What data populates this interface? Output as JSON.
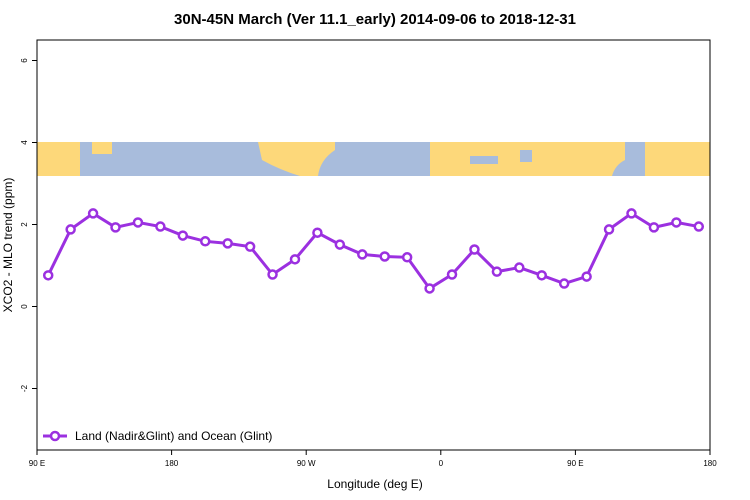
{
  "chart_data": {
    "type": "line",
    "title": "30N-45N March (Ver 11.1_early)   2014-09-06 to 2018-12-31",
    "x_label": "Longitude (deg E)",
    "y_label": "XCO2 - MLO trend (ppm)",
    "x": [
      97.5,
      112.5,
      127.5,
      142.5,
      157.5,
      172.5,
      187.5,
      202.5,
      217.5,
      232.5,
      247.5,
      262.5,
      277.5,
      292.5,
      307.5,
      322.5,
      337.5,
      352.5,
      367.5,
      382.5,
      397.5,
      412.5,
      427.5,
      442.5,
      457.5,
      472.5,
      487.5,
      502.5,
      517.5,
      532.5
    ],
    "series": [
      {
        "name": "Land (Nadir&Glint) and Ocean (Glint)",
        "color": "#9b30e0",
        "values": [
          0.76,
          1.88,
          2.27,
          1.93,
          2.05,
          1.95,
          1.73,
          1.59,
          1.54,
          1.46,
          0.78,
          1.15,
          1.8,
          1.51,
          1.27,
          1.22,
          1.2,
          0.44,
          0.78,
          1.39,
          0.85,
          0.95,
          0.76,
          0.56,
          0.73,
          1.88,
          2.27,
          1.93,
          2.05,
          1.95
        ]
      }
    ],
    "xlim": [
      90,
      540
    ],
    "xticks": [
      {
        "value": 90,
        "label": "90 E"
      },
      180,
      {
        "value": 270,
        "label": "90 W"
      },
      {
        "value": 360,
        "label": "0"
      },
      {
        "value": 450,
        "label": "90 E"
      },
      {
        "value": 540,
        "label": "180"
      }
    ],
    "ylim": [
      -3.5,
      6.5
    ],
    "yticks": [
      -2,
      0,
      2,
      4,
      6
    ],
    "legend": "bottom-left"
  }
}
